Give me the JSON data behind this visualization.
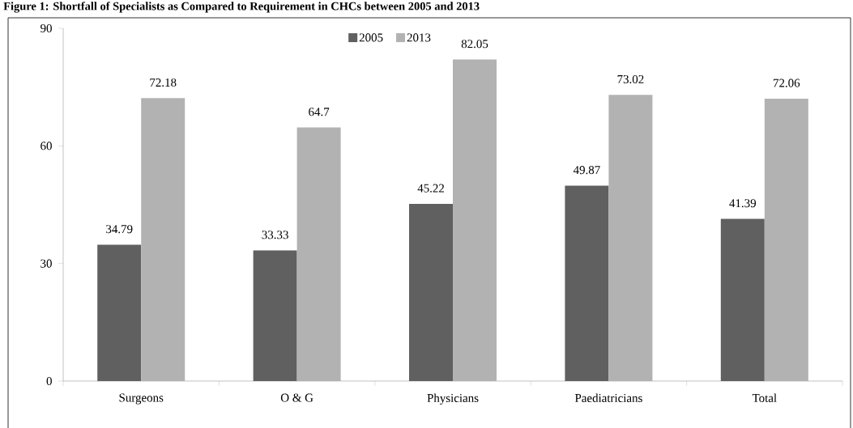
{
  "chart_data": {
    "type": "bar",
    "title": "Figure 1: Shortfall of Specialists as Compared to Requirement in CHCs between 2005 and 2013",
    "categories": [
      "Surgeons",
      "O & G",
      "Physicians",
      "Paediatricians",
      "Total"
    ],
    "series": [
      {
        "name": "2005",
        "color": "#606060",
        "values": [
          34.79,
          33.33,
          45.22,
          49.87,
          41.39
        ]
      },
      {
        "name": "2013",
        "color": "#b2b2b2",
        "values": [
          72.18,
          64.7,
          82.05,
          73.02,
          72.06
        ]
      }
    ],
    "ylim": [
      0,
      90
    ],
    "yticks": [
      0,
      30,
      60,
      90
    ],
    "grid": false,
    "legend": "top",
    "data_labels": true
  }
}
